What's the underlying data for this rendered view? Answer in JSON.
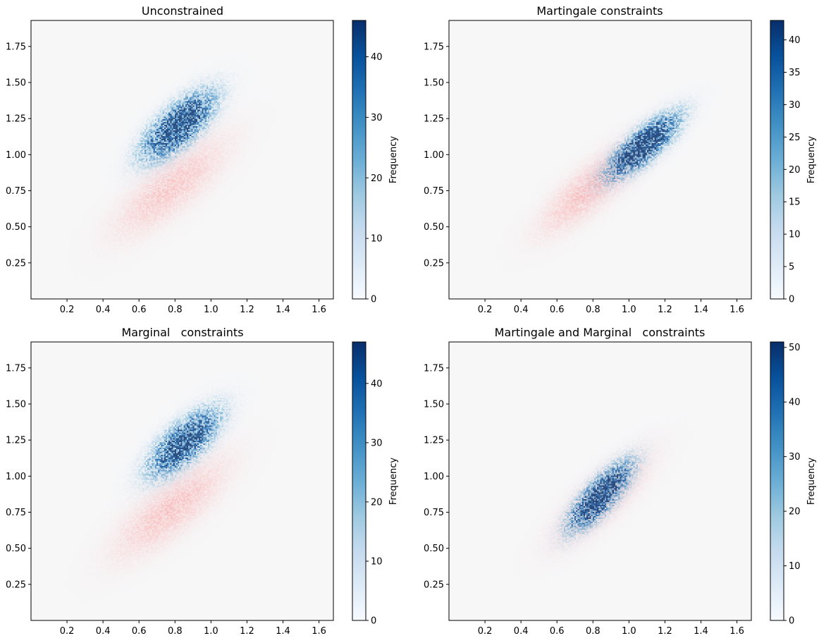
{
  "chart_data": [
    {
      "type": "heatmap",
      "title": "Unconstrained",
      "xlabel": "",
      "ylabel": "",
      "xlim": [
        0.0,
        1.68
      ],
      "ylim": [
        0.0,
        1.93
      ],
      "xticks": [
        "0.2",
        "0.4",
        "0.6",
        "0.8",
        "1.0",
        "1.2",
        "1.4",
        "1.6"
      ],
      "yticks": [
        "0.25",
        "0.50",
        "0.75",
        "1.00",
        "1.25",
        "1.50",
        "1.75"
      ],
      "grid": false,
      "colorbar": {
        "label": "Frequency",
        "min": 0,
        "max": 46,
        "ticks": [
          "0",
          "10",
          "20",
          "30",
          "40"
        ]
      },
      "series": [
        {
          "color": "blue",
          "peak": 46,
          "center": [
            0.82,
            1.2
          ],
          "spread": [
            0.17,
            0.2
          ],
          "rho": 0.72,
          "xrange": [
            0.0,
            1.35
          ],
          "yrange": [
            0.05,
            1.76
          ]
        },
        {
          "color": "red",
          "peak": 20,
          "center": [
            0.78,
            0.78
          ],
          "spread": [
            0.2,
            0.22
          ],
          "rho": 0.78,
          "xrange": [
            0.0,
            1.6
          ],
          "yrange": [
            0.05,
            1.76
          ]
        }
      ]
    },
    {
      "type": "heatmap",
      "title": "Martingale constraints",
      "xlabel": "",
      "ylabel": "",
      "xlim": [
        0.0,
        1.68
      ],
      "ylim": [
        0.0,
        1.93
      ],
      "xticks": [
        "0.2",
        "0.4",
        "0.6",
        "0.8",
        "1.0",
        "1.2",
        "1.4",
        "1.6"
      ],
      "yticks": [
        "0.25",
        "0.50",
        "0.75",
        "1.00",
        "1.25",
        "1.50",
        "1.75"
      ],
      "grid": false,
      "colorbar": {
        "label": "Frequency",
        "min": 0,
        "max": 43,
        "ticks": [
          "0",
          "5",
          "10",
          "15",
          "20",
          "25",
          "30",
          "35",
          "40"
        ]
      },
      "series": [
        {
          "color": "blue",
          "peak": 43,
          "center": [
            1.08,
            1.06
          ],
          "spread": [
            0.17,
            0.19
          ],
          "rho": 0.8,
          "xrange": [
            0.22,
            1.5
          ],
          "yrange": [
            0.0,
            1.76
          ]
        },
        {
          "color": "red",
          "peak": 24,
          "center": [
            0.8,
            0.78
          ],
          "spread": [
            0.18,
            0.2
          ],
          "rho": 0.82,
          "xrange": [
            0.22,
            1.6
          ],
          "yrange": [
            0.0,
            1.76
          ]
        }
      ]
    },
    {
      "type": "heatmap",
      "title": "Marginal   constraints",
      "xlabel": "",
      "ylabel": "",
      "xlim": [
        0.0,
        1.68
      ],
      "ylim": [
        0.0,
        1.93
      ],
      "xticks": [
        "0.2",
        "0.4",
        "0.6",
        "0.8",
        "1.0",
        "1.2",
        "1.4",
        "1.6"
      ],
      "yticks": [
        "0.25",
        "0.50",
        "0.75",
        "1.00",
        "1.25",
        "1.50",
        "1.75"
      ],
      "grid": false,
      "colorbar": {
        "label": "Frequency",
        "min": 0,
        "max": 47,
        "ticks": [
          "0",
          "10",
          "20",
          "30",
          "40"
        ]
      },
      "series": [
        {
          "color": "blue",
          "peak": 44,
          "center": [
            0.85,
            1.23
          ],
          "spread": [
            0.17,
            0.2
          ],
          "rho": 0.72,
          "xrange": [
            0.0,
            1.38
          ],
          "yrange": [
            0.05,
            1.76
          ]
        },
        {
          "color": "red",
          "peak": 22,
          "center": [
            0.78,
            0.78
          ],
          "spread": [
            0.2,
            0.22
          ],
          "rho": 0.78,
          "xrange": [
            0.0,
            1.6
          ],
          "yrange": [
            0.05,
            1.76
          ]
        }
      ]
    },
    {
      "type": "heatmap",
      "title": "Martingale and Marginal   constraints",
      "xlabel": "",
      "ylabel": "",
      "xlim": [
        0.0,
        1.68
      ],
      "ylim": [
        0.0,
        1.93
      ],
      "xticks": [
        "0.2",
        "0.4",
        "0.6",
        "0.8",
        "1.0",
        "1.2",
        "1.4",
        "1.6"
      ],
      "yticks": [
        "0.25",
        "0.50",
        "0.75",
        "1.00",
        "1.25",
        "1.50",
        "1.75"
      ],
      "grid": false,
      "colorbar": {
        "label": "Frequency",
        "min": 0,
        "max": 51,
        "ticks": [
          "0",
          "10",
          "20",
          "30",
          "40",
          "50"
        ]
      },
      "series": [
        {
          "color": "blue",
          "peak": 51,
          "center": [
            0.84,
            0.86
          ],
          "spread": [
            0.15,
            0.2
          ],
          "rho": 0.8,
          "xrange": [
            0.0,
            1.25
          ],
          "yrange": [
            0.0,
            1.92
          ]
        },
        {
          "color": "red",
          "peak": 22,
          "center": [
            0.85,
            0.84
          ],
          "spread": [
            0.17,
            0.2
          ],
          "rho": 0.8,
          "xrange": [
            0.0,
            1.6
          ],
          "yrange": [
            0.0,
            1.92
          ]
        }
      ]
    }
  ]
}
